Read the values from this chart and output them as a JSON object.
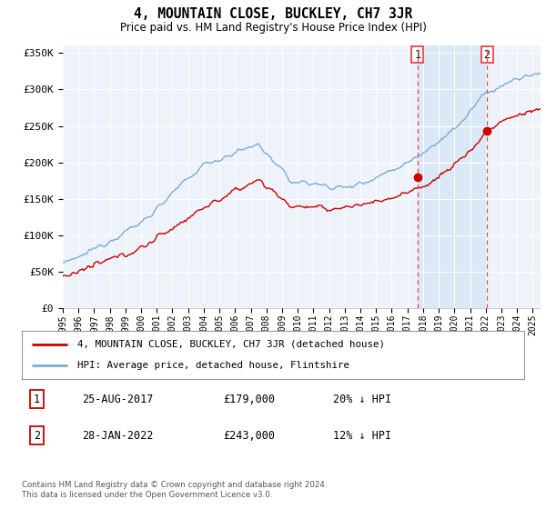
{
  "title": "4, MOUNTAIN CLOSE, BUCKLEY, CH7 3JR",
  "subtitle": "Price paid vs. HM Land Registry's House Price Index (HPI)",
  "ylim": [
    0,
    360000
  ],
  "yticks": [
    0,
    50000,
    100000,
    150000,
    200000,
    250000,
    300000,
    350000
  ],
  "ytick_labels": [
    "£0",
    "£50K",
    "£100K",
    "£150K",
    "£200K",
    "£250K",
    "£300K",
    "£350K"
  ],
  "hpi_color": "#7aadd4",
  "price_color": "#cc0000",
  "vline_color": "#ee4444",
  "shade_color": "#d8e8f5",
  "marker1_date": 2017.65,
  "marker1_price": 179000,
  "marker2_date": 2022.08,
  "marker2_price": 243000,
  "legend_property": "4, MOUNTAIN CLOSE, BUCKLEY, CH7 3JR (detached house)",
  "legend_hpi": "HPI: Average price, detached house, Flintshire",
  "table_row1": [
    "1",
    "25-AUG-2017",
    "£179,000",
    "20% ↓ HPI"
  ],
  "table_row2": [
    "2",
    "28-JAN-2022",
    "£243,000",
    "12% ↓ HPI"
  ],
  "footer": "Contains HM Land Registry data © Crown copyright and database right 2024.\nThis data is licensed under the Open Government Licence v3.0.",
  "background_color": "#ffffff",
  "plot_bg_color": "#eef2fb"
}
